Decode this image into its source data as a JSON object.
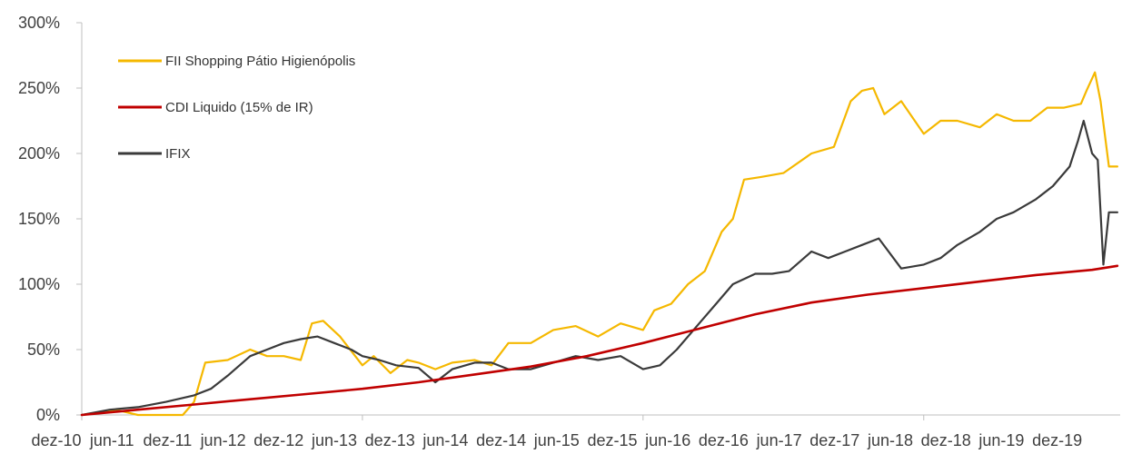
{
  "chart_data": {
    "type": "line",
    "title": "",
    "xlabel": "",
    "ylabel": "",
    "ylim": [
      0,
      300
    ],
    "yticks": [
      0,
      50,
      100,
      150,
      200,
      250,
      300
    ],
    "ytick_labels": [
      "0%",
      "50%",
      "100%",
      "150%",
      "200%",
      "250%",
      "300%"
    ],
    "x_categories": [
      "dez-10",
      "jun-11",
      "dez-11",
      "jun-12",
      "dez-12",
      "jun-13",
      "dez-13",
      "jun-14",
      "dez-14",
      "jun-15",
      "dez-15",
      "jun-16",
      "dez-16",
      "jun-17",
      "dez-17",
      "jun-18",
      "dez-18",
      "jun-19",
      "dez-19"
    ],
    "grid": false,
    "legend_position": "top-left",
    "series": [
      {
        "name": "FII Shopping Pátio Higienópolis",
        "color": "#F5B800",
        "x": [
          0,
          0.3,
          0.6,
          1.0,
          1.3,
          1.6,
          1.8,
          2.0,
          2.2,
          2.6,
          3.0,
          3.3,
          3.6,
          3.9,
          4.1,
          4.3,
          4.6,
          5.0,
          5.2,
          5.5,
          5.8,
          6.0,
          6.3,
          6.6,
          7.0,
          7.3,
          7.6,
          8.0,
          8.4,
          8.8,
          9.2,
          9.6,
          10.0,
          10.2,
          10.5,
          10.8,
          11.1,
          11.4,
          11.6,
          11.8,
          12.1,
          12.5,
          13.0,
          13.4,
          13.7,
          13.9,
          14.1,
          14.3,
          14.6,
          15.0,
          15.3,
          15.6,
          16.0,
          16.3,
          16.6,
          16.9,
          17.2,
          17.5,
          17.8,
          17.9,
          18.05,
          18.15,
          18.3,
          18.45
        ],
        "values": [
          0,
          2,
          4,
          0,
          0,
          0,
          0,
          10,
          40,
          42,
          50,
          45,
          45,
          42,
          70,
          72,
          60,
          38,
          45,
          32,
          42,
          40,
          35,
          40,
          42,
          38,
          55,
          55,
          65,
          68,
          60,
          70,
          65,
          80,
          85,
          100,
          110,
          140,
          150,
          180,
          182,
          185,
          200,
          205,
          240,
          248,
          250,
          230,
          240,
          215,
          225,
          225,
          220,
          230,
          225,
          225,
          235,
          235,
          238,
          248,
          262,
          240,
          190,
          190
        ]
      },
      {
        "name": "CDI Liquido (15% de IR)",
        "color": "#C00000",
        "x": [
          0,
          1,
          2,
          3,
          4,
          5,
          6,
          7,
          8,
          9,
          10,
          11,
          12,
          13,
          14,
          15,
          16,
          17,
          18,
          18.45
        ],
        "values": [
          0,
          4,
          8,
          12,
          16,
          20,
          25,
          31,
          37,
          45,
          55,
          66,
          77,
          86,
          92,
          97,
          102,
          107,
          111,
          114
        ]
      },
      {
        "name": "IFIX",
        "color": "#3A3A3A",
        "x": [
          0,
          0.5,
          1.0,
          1.5,
          2.0,
          2.3,
          2.6,
          3.0,
          3.3,
          3.6,
          3.9,
          4.2,
          4.5,
          4.8,
          5.0,
          5.3,
          5.6,
          6.0,
          6.3,
          6.6,
          7.0,
          7.3,
          7.6,
          8.0,
          8.4,
          8.8,
          9.2,
          9.6,
          10.0,
          10.3,
          10.6,
          11.0,
          11.3,
          11.6,
          12.0,
          12.3,
          12.6,
          13.0,
          13.3,
          13.6,
          13.9,
          14.2,
          14.6,
          15.0,
          15.3,
          15.6,
          16.0,
          16.3,
          16.6,
          17.0,
          17.3,
          17.6,
          17.75,
          17.85,
          18.0,
          18.1,
          18.2,
          18.3,
          18.45
        ],
        "values": [
          0,
          4,
          6,
          10,
          15,
          20,
          30,
          45,
          50,
          55,
          58,
          60,
          55,
          50,
          45,
          42,
          38,
          36,
          25,
          35,
          40,
          40,
          35,
          35,
          40,
          45,
          42,
          45,
          35,
          38,
          50,
          70,
          85,
          100,
          108,
          108,
          110,
          125,
          120,
          125,
          130,
          135,
          112,
          115,
          120,
          130,
          140,
          150,
          155,
          165,
          175,
          190,
          210,
          225,
          200,
          195,
          115,
          155,
          155
        ]
      }
    ]
  }
}
